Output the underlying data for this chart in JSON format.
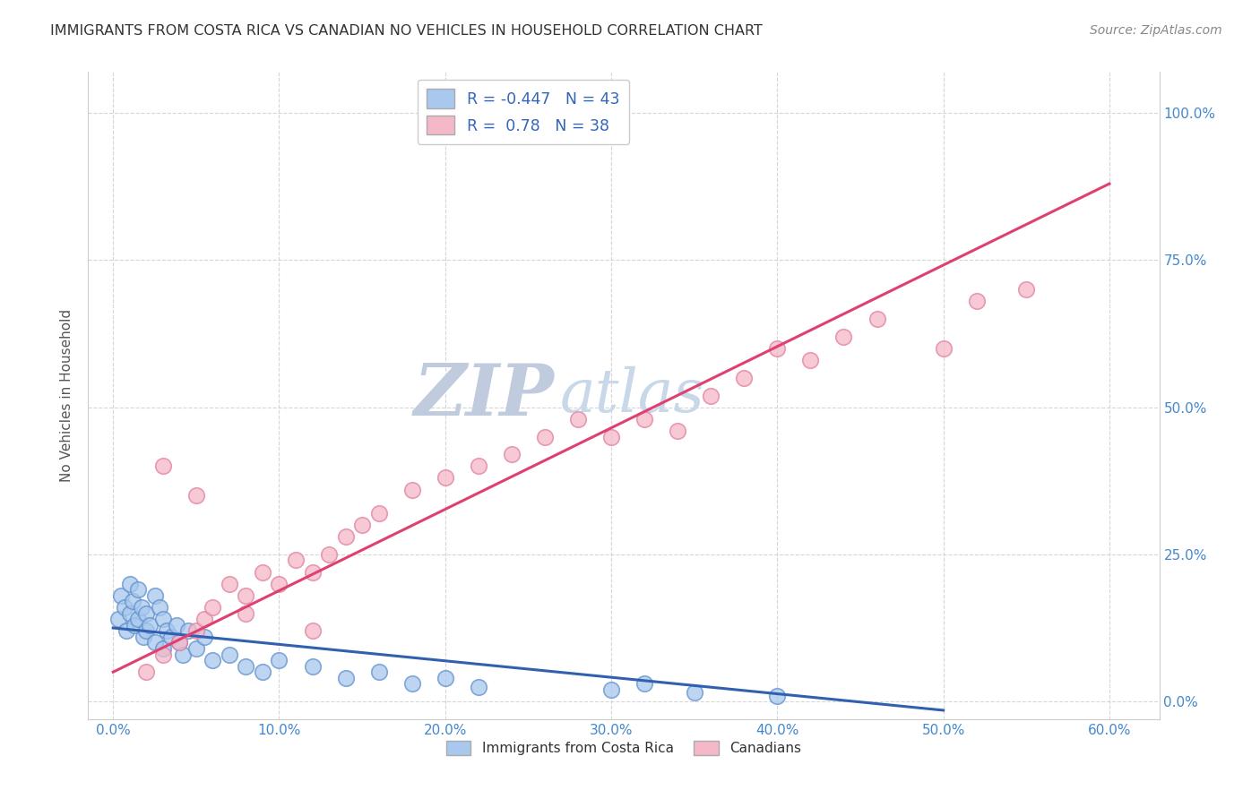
{
  "title": "IMMIGRANTS FROM COSTA RICA VS CANADIAN NO VEHICLES IN HOUSEHOLD CORRELATION CHART",
  "source": "Source: ZipAtlas.com",
  "xlim": [
    -1.5,
    63.0
  ],
  "ylim": [
    -3.0,
    107.0
  ],
  "blue_R": -0.447,
  "blue_N": 43,
  "pink_R": 0.78,
  "pink_N": 38,
  "blue_color": "#A8C8EE",
  "pink_color": "#F5B8C8",
  "blue_edge_color": "#6090CC",
  "pink_edge_color": "#E080A0",
  "blue_line_color": "#3060B0",
  "pink_line_color": "#E04070",
  "watermark_zip_color": "#C0CCDD",
  "watermark_atlas_color": "#C8D8E8",
  "title_color": "#333333",
  "source_color": "#888888",
  "tick_label_color": "#4488CC",
  "ylabel_color": "#555555",
  "legend_text_color": "#3366BB",
  "blue_scatter_x": [
    0.3,
    0.5,
    0.7,
    0.8,
    1.0,
    1.0,
    1.2,
    1.3,
    1.5,
    1.5,
    1.7,
    1.8,
    2.0,
    2.0,
    2.2,
    2.5,
    2.5,
    2.8,
    3.0,
    3.0,
    3.2,
    3.5,
    3.8,
    4.0,
    4.2,
    4.5,
    5.0,
    5.5,
    6.0,
    7.0,
    8.0,
    9.0,
    10.0,
    12.0,
    14.0,
    16.0,
    18.0,
    20.0,
    22.0,
    30.0,
    32.0,
    35.0,
    40.0
  ],
  "blue_scatter_y": [
    14.0,
    18.0,
    16.0,
    12.0,
    20.0,
    15.0,
    17.0,
    13.0,
    19.0,
    14.0,
    16.0,
    11.0,
    15.0,
    12.0,
    13.0,
    18.0,
    10.0,
    16.0,
    14.0,
    9.0,
    12.0,
    11.0,
    13.0,
    10.0,
    8.0,
    12.0,
    9.0,
    11.0,
    7.0,
    8.0,
    6.0,
    5.0,
    7.0,
    6.0,
    4.0,
    5.0,
    3.0,
    4.0,
    2.5,
    2.0,
    3.0,
    1.5,
    1.0
  ],
  "pink_scatter_x": [
    2.0,
    3.0,
    4.0,
    5.0,
    5.5,
    6.0,
    7.0,
    8.0,
    9.0,
    10.0,
    11.0,
    12.0,
    13.0,
    14.0,
    15.0,
    16.0,
    18.0,
    20.0,
    22.0,
    24.0,
    26.0,
    28.0,
    30.0,
    32.0,
    34.0,
    36.0,
    38.0,
    40.0,
    42.0,
    44.0,
    46.0,
    50.0,
    52.0,
    55.0,
    3.0,
    5.0,
    8.0,
    12.0
  ],
  "pink_scatter_y": [
    5.0,
    8.0,
    10.0,
    12.0,
    14.0,
    16.0,
    20.0,
    18.0,
    22.0,
    20.0,
    24.0,
    22.0,
    25.0,
    28.0,
    30.0,
    32.0,
    36.0,
    38.0,
    40.0,
    42.0,
    45.0,
    48.0,
    45.0,
    48.0,
    46.0,
    52.0,
    55.0,
    60.0,
    58.0,
    62.0,
    65.0,
    60.0,
    68.0,
    70.0,
    40.0,
    35.0,
    15.0,
    12.0
  ],
  "blue_line_x0": 0.0,
  "blue_line_y0": 12.5,
  "blue_line_x1": 50.0,
  "blue_line_y1": -1.5,
  "pink_line_x0": 0.0,
  "pink_line_y0": 5.0,
  "pink_line_x1": 60.0,
  "pink_line_y1": 88.0
}
